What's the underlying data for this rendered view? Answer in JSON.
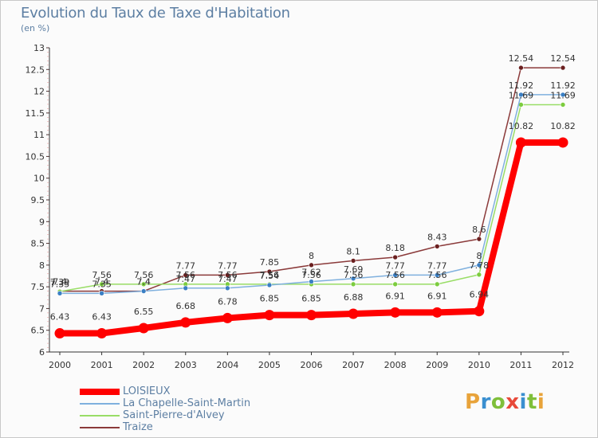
{
  "header": {
    "title": "Evolution du Taux de Taxe d'Habitation",
    "unit": "(en %)"
  },
  "logo": {
    "text": "Proxiti",
    "colors": [
      "#e8a33a",
      "#3a8fd0",
      "#7fbf3a",
      "#e84a3a",
      "#3a8fd0",
      "#7fbf3a",
      "#e8a33a"
    ]
  },
  "chart_data": {
    "type": "line",
    "title": "Evolution du Taux de Taxe d'Habitation",
    "ylabel": "(en %)",
    "xlabel": "",
    "categories": [
      "2000",
      "2001",
      "2002",
      "2003",
      "2004",
      "2005",
      "2006",
      "2007",
      "2008",
      "2009",
      "2010",
      "2011",
      "2012"
    ],
    "ylim": [
      6,
      13
    ],
    "yticks": [
      "6",
      "6.5",
      "7",
      "7.5",
      "8",
      "8.5",
      "9",
      "9.5",
      "10",
      "10.5",
      "11",
      "11.5",
      "12",
      "12.5",
      "13"
    ],
    "grid": false,
    "legend": "bottom-left",
    "series": [
      {
        "name": "LOISIEUX",
        "color": "#ff0000",
        "values": [
          6.43,
          6.43,
          6.55,
          6.68,
          6.78,
          6.85,
          6.85,
          6.88,
          6.91,
          6.91,
          6.94,
          10.82,
          10.82
        ],
        "labels": [
          "6.43",
          "6.43",
          "6.55",
          "6.68",
          "6.78",
          "6.85",
          "6.85",
          "6.88",
          "6.91",
          "6.91",
          "6.94",
          "10.82",
          "10.82"
        ]
      },
      {
        "name": "La Chapelle-Saint-Martin",
        "color": "#7fb0de",
        "marker": "#3a7fc4",
        "values": [
          7.35,
          7.35,
          7.4,
          7.47,
          7.47,
          7.54,
          7.62,
          7.69,
          7.77,
          7.77,
          8,
          11.92,
          11.92
        ],
        "labels": [
          "7.35",
          "7.35",
          "7.4",
          "7.47",
          "7.47",
          "7.54",
          "7.62",
          "7.69",
          "7.77",
          "7.77",
          "8",
          "11.92",
          "11.92"
        ]
      },
      {
        "name": "Saint-Pierre-d'Alvey",
        "color": "#99dd66",
        "marker": "#7ccc3e",
        "values": [
          7.39,
          7.56,
          7.56,
          7.56,
          7.56,
          7.56,
          7.56,
          7.56,
          7.56,
          7.56,
          7.78,
          11.69,
          11.69
        ],
        "labels": [
          "7.39",
          "7.56",
          "7.56",
          "7.56",
          "7.56",
          "7.56",
          "7.56",
          "7.56",
          "7.56",
          "7.56",
          "7.78",
          "11.69",
          "11.69"
        ]
      },
      {
        "name": "Traize",
        "color": "#8b3a3a",
        "marker": "#6b2020",
        "values": [
          7.4,
          7.4,
          7.4,
          7.77,
          7.77,
          7.85,
          8,
          8.1,
          8.18,
          8.43,
          8.6,
          12.54,
          12.54
        ],
        "labels": [
          "7.4",
          "7.4",
          "7.4",
          "7.77",
          "7.77",
          "7.85",
          "8",
          "8.1",
          "8.18",
          "8.43",
          "8.6",
          "12.54",
          "12.54"
        ]
      }
    ]
  }
}
